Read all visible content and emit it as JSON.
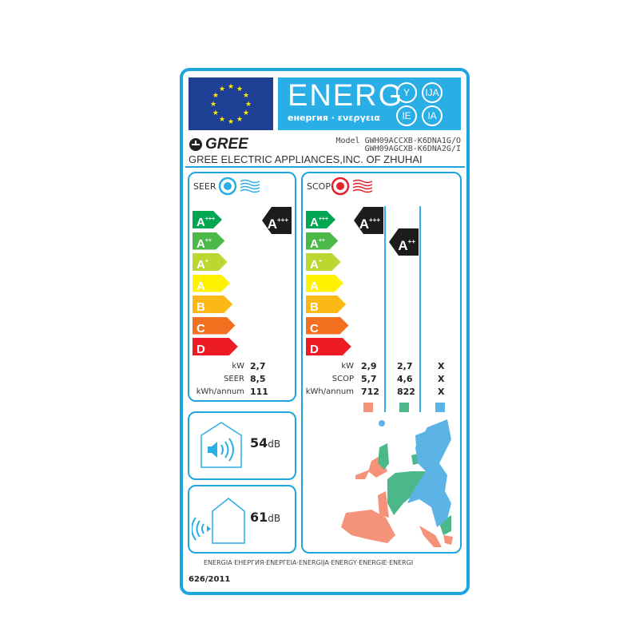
{
  "banner": {
    "word": "ENERG",
    "circles": [
      "Y",
      "IJA",
      "IE",
      "IA"
    ],
    "subtitle": "енергия · ενεργεια",
    "color": "#29aee6"
  },
  "eu_flag": {
    "icon": "eu-flag-icon",
    "color": "#1f3f95"
  },
  "brand": {
    "logo": "GREE",
    "company": "GREE ELECTRIC APPLIANCES,INC. OF ZHUHAI"
  },
  "model": {
    "label": "Model",
    "line1": "GWH09ACCXB-K6DNA1G/O",
    "line2": "GWH09AGCXB-K6DNA2G/I"
  },
  "classes": [
    {
      "base": "A",
      "sup": "+++",
      "color": "#00a651"
    },
    {
      "base": "A",
      "sup": "++",
      "color": "#4cb848"
    },
    {
      "base": "A",
      "sup": "+",
      "color": "#bed630"
    },
    {
      "base": "A",
      "sup": "",
      "color": "#fff200"
    },
    {
      "base": "B",
      "sup": "",
      "color": "#fcb814"
    },
    {
      "base": "C",
      "sup": "",
      "color": "#f37021"
    },
    {
      "base": "D",
      "sup": "",
      "color": "#ed1c24"
    }
  ],
  "seer": {
    "title": "SEER",
    "rating_base": "A",
    "rating_sup": "+++",
    "labels": [
      "kW",
      "SEER",
      "kWh/annum"
    ],
    "values": [
      "2,7",
      "8,5",
      "111"
    ]
  },
  "scop": {
    "title": "SCOP",
    "labels": [
      "kW",
      "SCOP",
      "kWh/annum"
    ],
    "columns": [
      {
        "rating_base": "A",
        "rating_sup": "+++",
        "values": [
          "2,9",
          "5,7",
          "712"
        ],
        "color": "#f4937a"
      },
      {
        "rating_base": "A",
        "rating_sup": "++",
        "values": [
          "2,7",
          "4,6",
          "822"
        ],
        "color": "#4cb88a"
      },
      {
        "rating_base": "",
        "rating_sup": "",
        "values": [
          "X",
          "X",
          "X"
        ],
        "color": "#5cb4e6"
      }
    ]
  },
  "noise": {
    "indoor_value": "54",
    "outdoor_value": "61",
    "unit": "dB"
  },
  "footer": {
    "languages": "ENERGIA·ЕНЕРГИЯ·ΕΝΕΡΓΕΙΑ·ENERGIJA·ENERGY·ENERGIE·ENERGI",
    "regulation": "626/2011"
  }
}
